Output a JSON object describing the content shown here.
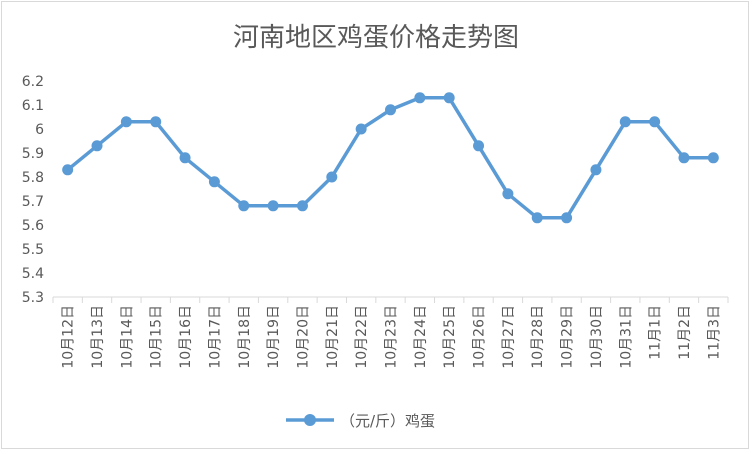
{
  "chart_data": {
    "type": "line",
    "title": "河南地区鸡蛋价格走势图",
    "categories": [
      "10月12日",
      "10月13日",
      "10月14日",
      "10月15日",
      "10月16日",
      "10月17日",
      "10月18日",
      "10月19日",
      "10月20日",
      "10月21日",
      "10月22日",
      "10月23日",
      "10月24日",
      "10月25日",
      "10月26日",
      "10月27日",
      "10月28日",
      "10月29日",
      "10月30日",
      "10月31日",
      "11月1日",
      "11月2日",
      "11月3日"
    ],
    "series": [
      {
        "name": "（元/斤）鸡蛋",
        "values": [
          5.83,
          5.93,
          6.03,
          6.03,
          5.88,
          5.78,
          5.68,
          5.68,
          5.68,
          5.8,
          6.0,
          6.08,
          6.13,
          6.13,
          5.93,
          5.73,
          5.63,
          5.63,
          5.83,
          6.03,
          6.03,
          5.88,
          5.88
        ],
        "color": "#5b9bd5"
      }
    ],
    "yticks": [
      "5.3",
      "5.4",
      "5.5",
      "5.6",
      "5.7",
      "5.8",
      "5.9",
      "6",
      "6.1",
      "6.2"
    ],
    "ylim": [
      5.3,
      6.2
    ],
    "xlabel": "",
    "ylabel": "",
    "grid": false,
    "legend": "bottom-center"
  }
}
